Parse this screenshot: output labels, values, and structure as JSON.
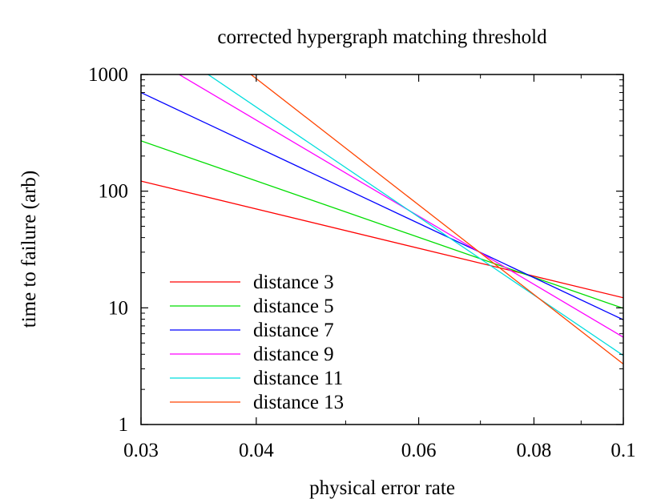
{
  "chart_data": {
    "type": "line",
    "title": "corrected hypergraph matching threshold",
    "xlabel": "physical error rate",
    "ylabel": "time to failure (arb)",
    "xscale": "log",
    "yscale": "log",
    "xlim": [
      0.03,
      0.1
    ],
    "ylim": [
      1,
      1000
    ],
    "xticks": [
      0.03,
      0.04,
      0.06,
      0.08,
      0.1
    ],
    "xtick_labels": [
      "0.03",
      "0.04",
      "0.06",
      "0.08",
      "0.1"
    ],
    "yticks": [
      1,
      10,
      100,
      1000
    ],
    "ytick_labels": [
      "1",
      "10",
      "100",
      "1000"
    ],
    "grid": false,
    "legend_position": "bottom-left",
    "series": [
      {
        "name": "distance 3",
        "color": "#ff0000",
        "x": [
          0.03,
          0.1
        ],
        "y": [
          122,
          12.2
        ]
      },
      {
        "name": "distance 5",
        "color": "#00dd00",
        "x": [
          0.03,
          0.1
        ],
        "y": [
          270,
          9.9
        ]
      },
      {
        "name": "distance 7",
        "color": "#0000ff",
        "x": [
          0.03,
          0.1
        ],
        "y": [
          700,
          7.9
        ]
      },
      {
        "name": "distance 9",
        "color": "#ff00ff",
        "x": [
          0.03,
          0.1
        ],
        "y": [
          1560,
          5.6
        ]
      },
      {
        "name": "distance 11",
        "color": "#00dddd",
        "x": [
          0.03,
          0.1
        ],
        "y": [
          2450,
          3.9
        ]
      },
      {
        "name": "distance 13",
        "color": "#ff4400",
        "x": [
          0.03,
          0.1
        ],
        "y": [
          5400,
          3.3
        ]
      }
    ]
  }
}
